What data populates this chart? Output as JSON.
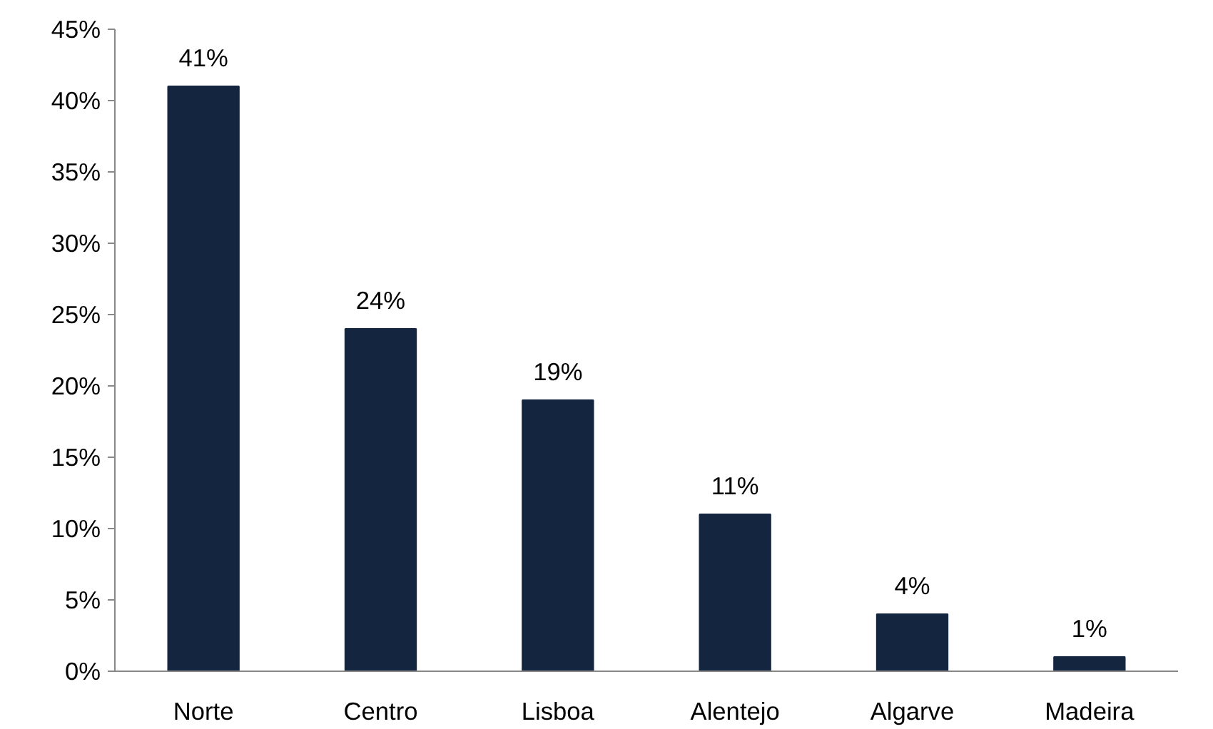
{
  "chart_data": {
    "type": "bar",
    "categories": [
      "Norte",
      "Centro",
      "Lisboa",
      "Alentejo",
      "Algarve",
      "Madeira"
    ],
    "values": [
      41,
      24,
      19,
      11,
      4,
      1
    ],
    "value_labels": [
      "41%",
      "24%",
      "19%",
      "11%",
      "4%",
      "1%"
    ],
    "color": "#14253f",
    "ylim": [
      0,
      45
    ],
    "yticks": [
      {
        "value": 0,
        "label": "0%"
      },
      {
        "value": 5,
        "label": "5%"
      },
      {
        "value": 10,
        "label": "10%"
      },
      {
        "value": 15,
        "label": "15%"
      },
      {
        "value": 20,
        "label": "20%"
      },
      {
        "value": 25,
        "label": "25%"
      },
      {
        "value": 30,
        "label": "30%"
      },
      {
        "value": 35,
        "label": "35%"
      },
      {
        "value": 40,
        "label": "40%"
      },
      {
        "value": 45,
        "label": "45%"
      }
    ],
    "grid": false
  }
}
